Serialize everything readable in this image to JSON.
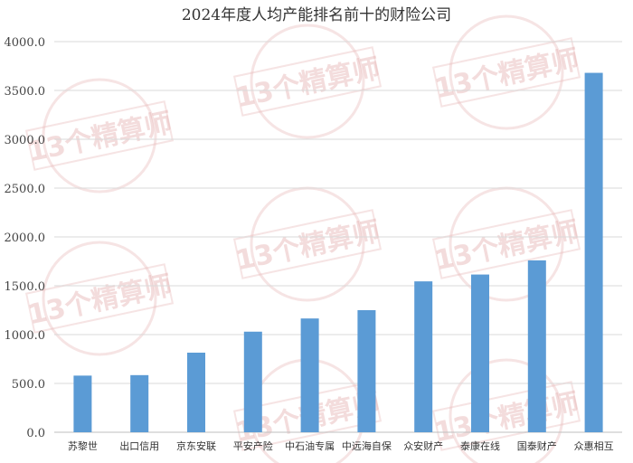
{
  "chart_data": {
    "type": "bar",
    "title": "2024年度人均产能排名前十的财险公司",
    "categories": [
      "苏黎世",
      "出口信用",
      "京东安联",
      "平安产险",
      "中石油专属",
      "中远海自保",
      "众安财产",
      "泰康在线",
      "国泰财产",
      "众惠相互"
    ],
    "values": [
      580,
      585,
      815,
      1030,
      1165,
      1250,
      1545,
      1615,
      1760,
      3680
    ],
    "ylim": [
      0,
      4000
    ],
    "yticks": [
      "0.0",
      "500.0",
      "1000.0",
      "1500.0",
      "2000.0",
      "2500.0",
      "3000.0",
      "3500.0",
      "4000.0"
    ],
    "grid": true,
    "bar_color": "#5b9bd5"
  },
  "watermark": {
    "text": "13个精算师",
    "color": "#e6b3b3"
  }
}
